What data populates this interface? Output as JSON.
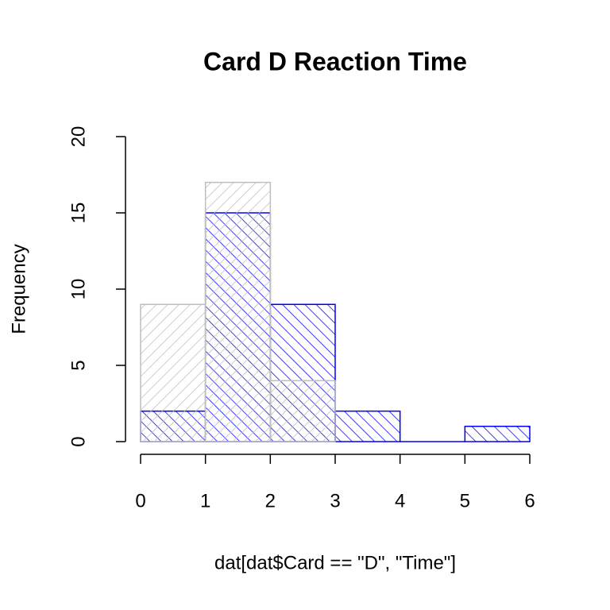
{
  "chart_data": {
    "type": "histogram",
    "title": "Card D Reaction Time",
    "x_label": "dat[dat$Card == \"D\", \"Time\"]",
    "y_label": "Frequency",
    "series": [
      {
        "color": "#0000ff",
        "bins": [
          0,
          1,
          2,
          3,
          4,
          5,
          6
        ],
        "values": [
          2,
          15,
          9,
          2,
          0,
          1
        ],
        "hatch_angle": 45
      },
      {
        "color": "#bebebe",
        "bins": [
          0,
          1,
          2,
          3
        ],
        "values": [
          9,
          17,
          4
        ],
        "hatch_angle": 135
      }
    ],
    "xlim": [
      0,
      6
    ],
    "xticks": [
      0,
      1,
      2,
      3,
      4,
      5,
      6
    ],
    "ylim": [
      0,
      20
    ],
    "yticks": [
      0,
      5,
      10,
      15,
      20
    ]
  }
}
